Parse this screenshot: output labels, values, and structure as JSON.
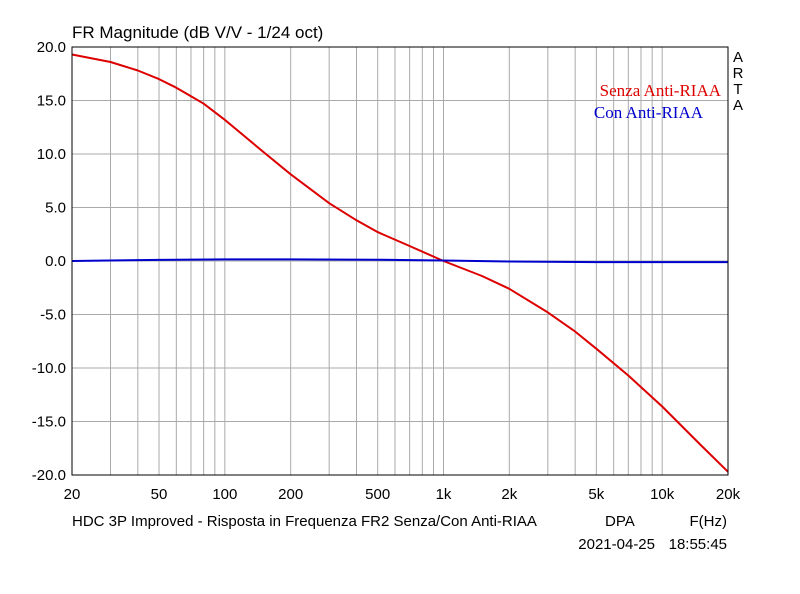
{
  "chart_data": {
    "type": "line",
    "title": "FR Magnitude (dB V/V - 1/24 oct)",
    "xscale": "log",
    "xlim": [
      20,
      20000
    ],
    "ylim": [
      -20,
      20
    ],
    "grid": true,
    "yticks": [
      20.0,
      15.0,
      10.0,
      5.0,
      0.0,
      -5.0,
      -10.0,
      -15.0,
      -20.0
    ],
    "ytick_labels": [
      "20.0",
      "15.0",
      "10.0",
      "5.0",
      "0.0",
      "-5.0",
      "-10.0",
      "-15.0",
      "-20.0"
    ],
    "xticks": [
      20,
      50,
      100,
      200,
      500,
      1000,
      2000,
      5000,
      10000,
      20000
    ],
    "xtick_labels": [
      "20",
      "50",
      "100",
      "200",
      "500",
      "1k",
      "2k",
      "5k",
      "10k",
      "20k"
    ],
    "legend_position": "top-right",
    "side_label": [
      "A",
      "R",
      "T",
      "A"
    ],
    "footer": {
      "caption": "HDC 3P Improved - Risposta in Frequenza FR2 Senza/Con Anti-RIAA",
      "brand": "DPA",
      "xunit": "F(Hz)",
      "date": "2021-04-25",
      "time": "18:55:45"
    },
    "series": [
      {
        "name": "Senza Anti-RIAA",
        "color": "#dd0000",
        "x": [
          20,
          30,
          40,
          50,
          60,
          70,
          80,
          100,
          150,
          200,
          300,
          400,
          500,
          700,
          1000,
          1500,
          2000,
          3000,
          4000,
          5000,
          7000,
          10000,
          15000,
          20000
        ],
        "y": [
          19.3,
          18.6,
          17.8,
          17.0,
          16.2,
          15.4,
          14.7,
          13.2,
          10.2,
          8.1,
          5.4,
          3.8,
          2.7,
          1.4,
          0.0,
          -1.4,
          -2.6,
          -4.8,
          -6.6,
          -8.2,
          -10.7,
          -13.6,
          -17.2,
          -19.7
        ]
      },
      {
        "name": "Con Anti-RIAA",
        "color": "#0000cc",
        "x": [
          20,
          50,
          100,
          200,
          500,
          1000,
          2000,
          5000,
          10000,
          20000
        ],
        "y": [
          0.0,
          0.1,
          0.15,
          0.15,
          0.12,
          0.05,
          -0.05,
          -0.1,
          -0.1,
          -0.1
        ]
      }
    ]
  }
}
